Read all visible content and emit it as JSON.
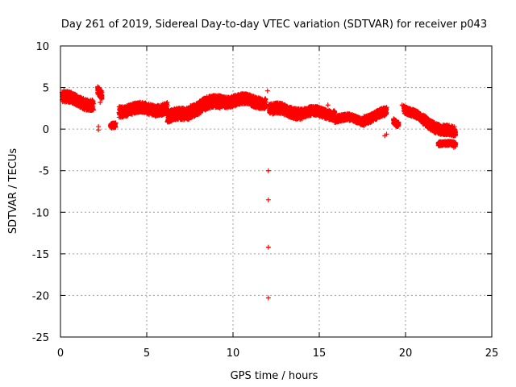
{
  "chart_data": {
    "type": "scatter",
    "title": "Day 261 of 2019, Sidereal Day-to-day VTEC variation (SDTVAR) for receiver p043",
    "xlabel": "GPS time / hours",
    "ylabel": "SDTVAR / TECUs",
    "xlim": [
      0,
      25
    ],
    "ylim": [
      -25,
      10
    ],
    "xticks": [
      0,
      5,
      10,
      15,
      20,
      25
    ],
    "yticks": [
      -25,
      -20,
      -15,
      -10,
      -5,
      0,
      5,
      10
    ],
    "xtick_labels": [
      "0",
      "5",
      "10",
      "15",
      "20",
      "25"
    ],
    "ytick_labels": [
      "-25",
      "-20",
      "-15",
      "-10",
      "-5",
      "0",
      "5",
      "10"
    ],
    "grid": true,
    "marker": "+",
    "color": "#ff0000",
    "series": [
      {
        "name": "SDTVAR",
        "bands": [
          {
            "x": [
              0.1,
              1.9
            ],
            "center": [
              3.8,
              3.0
            ],
            "spread": 1.3
          },
          {
            "x": [
              2.15,
              2.4
            ],
            "center": [
              4.6,
              3.8
            ],
            "spread": 1.0
          },
          {
            "x": [
              2.9,
              3.2
            ],
            "center": [
              0.3,
              0.6
            ],
            "spread": 0.6
          },
          {
            "x": [
              3.4,
              6.2
            ],
            "center": [
              2.3,
              2.5
            ],
            "spread": 1.3
          },
          {
            "x": [
              6.2,
              7.5
            ],
            "center": [
              1.3,
              2.1
            ],
            "spread": 1.4
          },
          {
            "x": [
              7.5,
              9.3
            ],
            "center": [
              2.3,
              3.4
            ],
            "spread": 1.5
          },
          {
            "x": [
              9.3,
              11.9
            ],
            "center": [
              3.5,
              3.3
            ],
            "spread": 1.3
          },
          {
            "x": [
              12.1,
              14.0
            ],
            "center": [
              2.4,
              2.0
            ],
            "spread": 1.3
          },
          {
            "x": [
              14.0,
              15.9
            ],
            "center": [
              2.0,
              1.9
            ],
            "spread": 1.1
          },
          {
            "x": [
              15.9,
              17.6
            ],
            "center": [
              1.4,
              1.0
            ],
            "spread": 0.8
          },
          {
            "x": [
              17.6,
              18.9
            ],
            "center": [
              1.3,
              1.9
            ],
            "spread": 1.0
          },
          {
            "x": [
              19.3,
              19.6
            ],
            "center": [
              1.0,
              0.7
            ],
            "spread": 0.7
          },
          {
            "x": [
              19.9,
              21.0
            ],
            "center": [
              2.6,
              1.0
            ],
            "spread": 0.9
          },
          {
            "x": [
              21.0,
              22.9
            ],
            "center": [
              1.0,
              -0.6
            ],
            "spread": 1.2
          },
          {
            "x": [
              21.9,
              22.9
            ],
            "center": [
              -1.5,
              -2.1
            ],
            "spread": 0.5
          }
        ],
        "points": [
          {
            "x": 0.2,
            "y": 4.7
          },
          {
            "x": 2.25,
            "y": 4.9
          },
          {
            "x": 2.3,
            "y": 3.2
          },
          {
            "x": 2.2,
            "y": 0.3
          },
          {
            "x": 2.2,
            "y": -0.1
          },
          {
            "x": 3.05,
            "y": 0.5
          },
          {
            "x": 12.0,
            "y": 4.6
          },
          {
            "x": 12.05,
            "y": -5.0
          },
          {
            "x": 12.05,
            "y": -8.5
          },
          {
            "x": 12.05,
            "y": -14.2
          },
          {
            "x": 12.05,
            "y": -20.3
          },
          {
            "x": 15.5,
            "y": 2.9
          },
          {
            "x": 18.8,
            "y": -0.8
          },
          {
            "x": 18.9,
            "y": -0.6
          },
          {
            "x": 19.8,
            "y": 2.9
          },
          {
            "x": 22.8,
            "y": -2.2
          }
        ]
      }
    ]
  }
}
